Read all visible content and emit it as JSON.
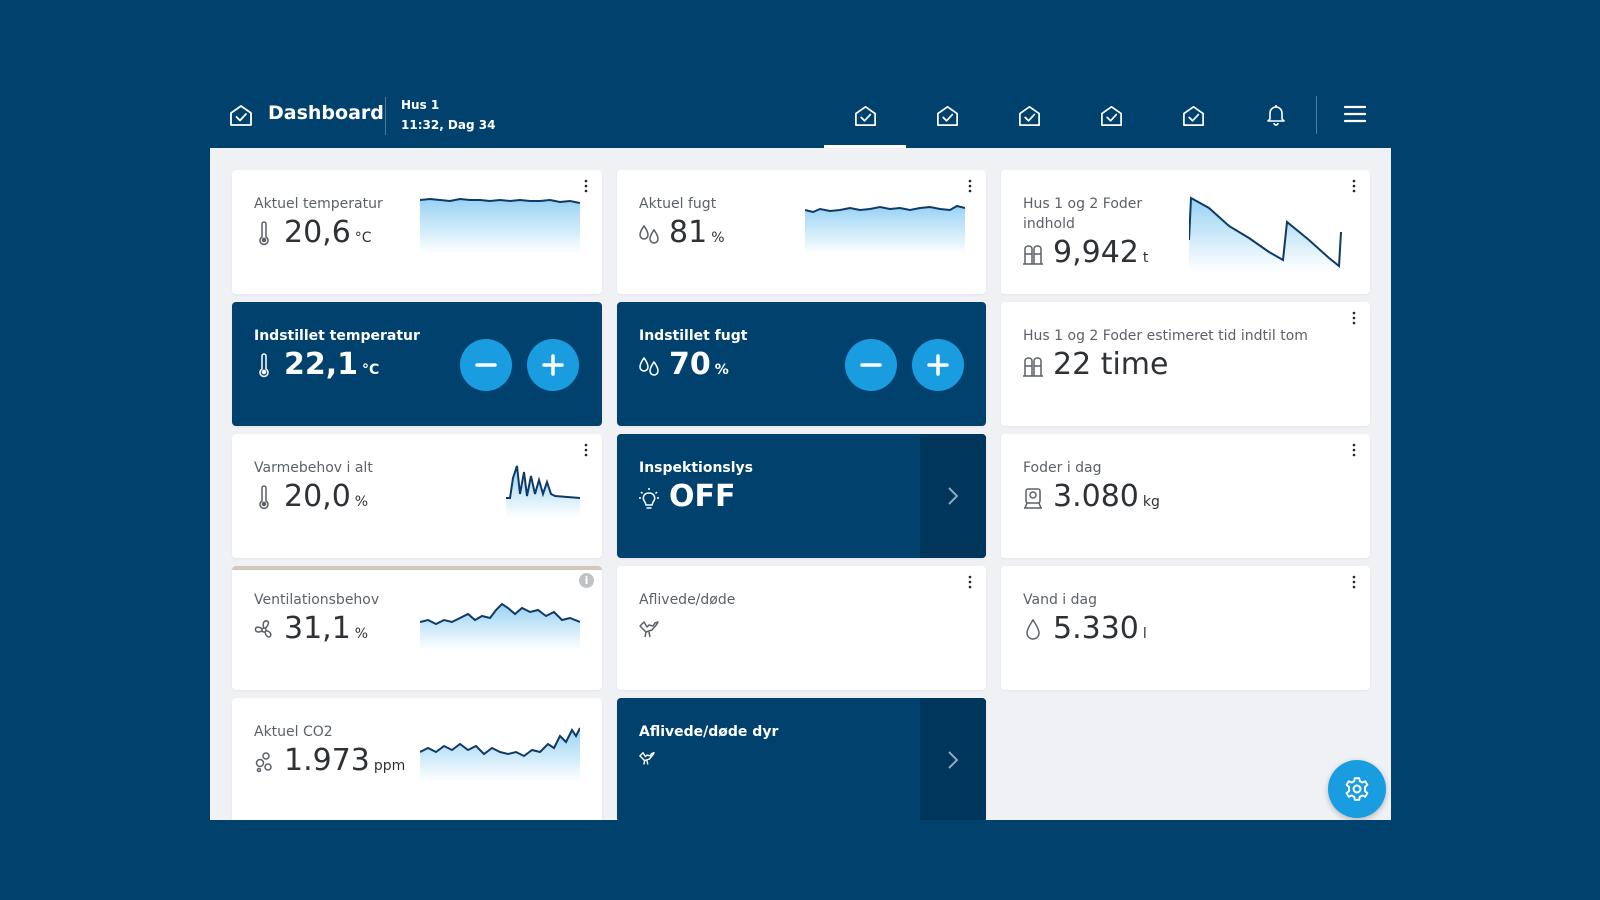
{
  "header": {
    "title": "Dashboard",
    "house": "Hus 1",
    "time": "11:32, Dag 34",
    "tabs": [
      "house-check-icon",
      "house-check-icon",
      "house-check-icon",
      "house-check-icon",
      "house-check-icon"
    ],
    "active_tab": 0
  },
  "cards": {
    "temp_actual": {
      "label": "Aktuel temperatur",
      "value": "20,6",
      "unit": "°C"
    },
    "humidity_actual": {
      "label": "Aktuel fugt",
      "value": "81",
      "unit": "%"
    },
    "feed_content": {
      "label": "Hus 1 og 2 Foder indhold",
      "value": "9,942",
      "unit": "t"
    },
    "temp_set": {
      "label": "Indstillet temperatur",
      "value": "22,1",
      "unit": "°C"
    },
    "humidity_set": {
      "label": "Indstillet fugt",
      "value": "70",
      "unit": "%"
    },
    "feed_time": {
      "label": "Hus 1 og 2 Foder estimeret tid indtil tom",
      "value": "22 time"
    },
    "heat_demand": {
      "label": "Varmebehov i alt",
      "value": "20,0",
      "unit": "%"
    },
    "inspection_light": {
      "label": "Inspektionslys",
      "value": "OFF"
    },
    "feed_today": {
      "label": "Foder i dag",
      "value": "3.080",
      "unit": "kg"
    },
    "ventilation": {
      "label": "Ventilationsbehov",
      "value": "31,1",
      "unit": "%"
    },
    "dead": {
      "label": "Aflivede/døde"
    },
    "water_today": {
      "label": "Vand i dag",
      "value": "5.330",
      "unit": "l"
    },
    "co2": {
      "label": "Aktuel CO2",
      "value": "1.973",
      "unit": "ppm"
    },
    "dead_animals": {
      "label": "Aflivede/døde dyr"
    }
  },
  "colors": {
    "navy": "#00416e",
    "accent": "#1a9de0",
    "spark_line": "#0d3a66"
  }
}
